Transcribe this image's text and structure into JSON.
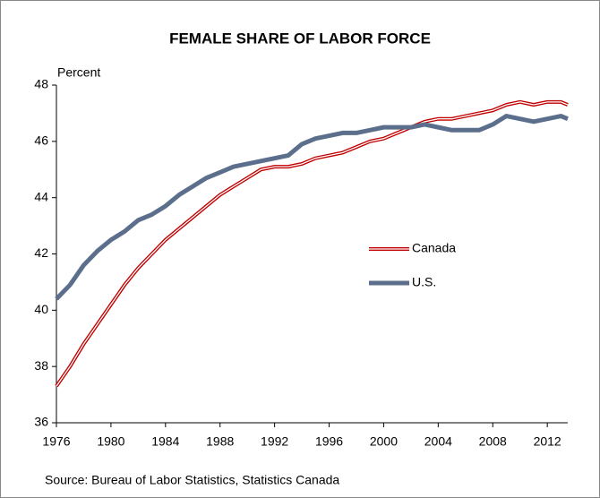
{
  "chart_data": {
    "type": "line",
    "title": "FEMALE SHARE OF LABOR FORCE",
    "y_label": "Percent",
    "source": "Source: Bureau of Labor Statistics, Statistics Canada",
    "x": [
      1976,
      1977,
      1978,
      1979,
      1980,
      1981,
      1982,
      1983,
      1984,
      1985,
      1986,
      1987,
      1988,
      1989,
      1990,
      1991,
      1992,
      1993,
      1994,
      1995,
      1996,
      1997,
      1998,
      1999,
      2000,
      2001,
      2002,
      2003,
      2004,
      2005,
      2006,
      2007,
      2008,
      2009,
      2010,
      2011,
      2012,
      2013,
      2013.5
    ],
    "series": [
      {
        "name": "Canada",
        "color": "#c00000",
        "values": [
          37.3,
          38.0,
          38.8,
          39.5,
          40.2,
          40.9,
          41.5,
          42.0,
          42.5,
          42.9,
          43.3,
          43.7,
          44.1,
          44.4,
          44.7,
          45.0,
          45.1,
          45.1,
          45.2,
          45.4,
          45.5,
          45.6,
          45.8,
          46.0,
          46.1,
          46.3,
          46.5,
          46.7,
          46.8,
          46.8,
          46.9,
          47.0,
          47.1,
          47.3,
          47.4,
          47.3,
          47.4,
          47.4,
          47.3
        ]
      },
      {
        "name": "U.S.",
        "color": "#5b6f8c",
        "values": [
          40.4,
          40.9,
          41.6,
          42.1,
          42.5,
          42.8,
          43.2,
          43.4,
          43.7,
          44.1,
          44.4,
          44.7,
          44.9,
          45.1,
          45.2,
          45.3,
          45.4,
          45.5,
          45.9,
          46.1,
          46.2,
          46.3,
          46.3,
          46.4,
          46.5,
          46.5,
          46.5,
          46.6,
          46.5,
          46.4,
          46.4,
          46.4,
          46.6,
          46.9,
          46.8,
          46.7,
          46.8,
          46.9,
          46.8
        ]
      }
    ],
    "xlim": [
      1976,
      2013.5
    ],
    "xticks": [
      1976,
      1980,
      1984,
      1988,
      1992,
      1996,
      2000,
      2004,
      2008,
      2012
    ],
    "ylim": [
      36,
      48
    ],
    "yticks": [
      36,
      38,
      40,
      42,
      44,
      46,
      48
    ]
  }
}
